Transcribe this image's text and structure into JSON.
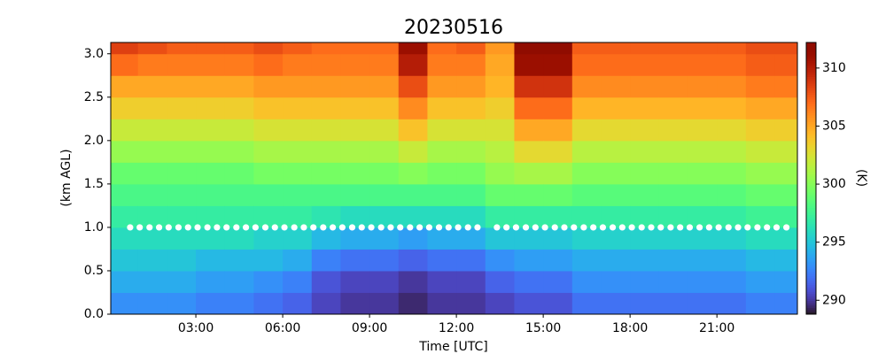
{
  "chart_data": {
    "type": "heatmap",
    "title": "20230516",
    "xlabel": "Time [UTC]",
    "ylabel": "(km AGL)",
    "colorbar_label": "(K)",
    "colormap": "turbo",
    "clim": [
      288.8,
      312.2
    ],
    "cticks": [
      290,
      295,
      300,
      305,
      310
    ],
    "xlim": [
      0.06,
      23.78
    ],
    "ylim": [
      0,
      3.13
    ],
    "xticks": [
      {
        "value": 3,
        "label": "03:00"
      },
      {
        "value": 6,
        "label": "06:00"
      },
      {
        "value": 9,
        "label": "09:00"
      },
      {
        "value": 12,
        "label": "12:00"
      },
      {
        "value": 15,
        "label": "15:00"
      },
      {
        "value": 18,
        "label": "18:00"
      },
      {
        "value": 21,
        "label": "21:00"
      }
    ],
    "yticks": [
      {
        "value": 0,
        "label": "0.0"
      },
      0.5,
      {
        "value": 1,
        "label": "1.0"
      },
      1.5,
      {
        "value": 2,
        "label": "2.0"
      },
      2.5,
      {
        "value": 3,
        "label": "3.0"
      }
    ],
    "x_edges": [
      0,
      1,
      2,
      3,
      4,
      5,
      6,
      7,
      8,
      9,
      10,
      11,
      12,
      13,
      14,
      15,
      16,
      17,
      18,
      19,
      20,
      21,
      22,
      23,
      24
    ],
    "y_edges": [
      0,
      0.25,
      0.5,
      0.75,
      1,
      1.25,
      1.5,
      1.75,
      2,
      2.25,
      2.5,
      2.75,
      3,
      3.25
    ],
    "values": [
      [
        293,
        294,
        295,
        296,
        297,
        298,
        299,
        300.5,
        302,
        303.5,
        305,
        307,
        308.5
      ],
      [
        293,
        294,
        295,
        296,
        297,
        298,
        299,
        300.5,
        302,
        303.5,
        305,
        306.5,
        308
      ],
      [
        293,
        294,
        295,
        296,
        297,
        298,
        299,
        300.5,
        302,
        303.5,
        305,
        306.5,
        307.5
      ],
      [
        292.5,
        293.5,
        294.5,
        296,
        297,
        298,
        299,
        300.5,
        302,
        303.5,
        305,
        306.5,
        307.5
      ],
      [
        292.5,
        293.5,
        294.5,
        296,
        297,
        298,
        299,
        300.5,
        302,
        303.5,
        305,
        306.5,
        307.5
      ],
      [
        292,
        293,
        294.5,
        295.5,
        297,
        298,
        299.5,
        301,
        302.5,
        304,
        305.5,
        307,
        308
      ],
      [
        291.5,
        292.5,
        294,
        295.5,
        297,
        298,
        299.5,
        301,
        302.5,
        304,
        305.5,
        306.5,
        307.5
      ],
      [
        290.5,
        291,
        292.5,
        294.5,
        296.5,
        298,
        299.5,
        301,
        302.5,
        304,
        305.5,
        306.5,
        307
      ],
      [
        290,
        290.5,
        292,
        294,
        296,
        298,
        299.5,
        301,
        302.5,
        304,
        305.5,
        306.5,
        307
      ],
      [
        290,
        290.5,
        292,
        294,
        296,
        298,
        299.5,
        301,
        302.5,
        304,
        305.5,
        306.5,
        307
      ],
      [
        289.5,
        290,
        291.5,
        293.5,
        296,
        298,
        300,
        302,
        304,
        306,
        308,
        310,
        311
      ],
      [
        290,
        290.5,
        292,
        294,
        296,
        298,
        299.5,
        301,
        302.5,
        304,
        305.5,
        306.5,
        307
      ],
      [
        290,
        290.5,
        292,
        294,
        296,
        298,
        299.5,
        301,
        302.5,
        304,
        305.5,
        306.5,
        307.5
      ],
      [
        290.5,
        291.5,
        293,
        295,
        297,
        299,
        300.5,
        301.5,
        302.5,
        303.5,
        304.5,
        305,
        305.5
      ],
      [
        291,
        292,
        293.5,
        295,
        297,
        299,
        301,
        303,
        305,
        307,
        309,
        311,
        312
      ],
      [
        291,
        292,
        293.5,
        295,
        297,
        299,
        301,
        303,
        305,
        307,
        309,
        311,
        312
      ],
      [
        292,
        293,
        294,
        295.5,
        297,
        298.5,
        300,
        301.5,
        303,
        304.5,
        306,
        307,
        307.5
      ],
      [
        292,
        293,
        294,
        295.5,
        297,
        298.5,
        300,
        301.5,
        303,
        304.5,
        306,
        307,
        307.5
      ],
      [
        292,
        293,
        294,
        295.5,
        297,
        298.5,
        300,
        301.5,
        303,
        304.5,
        306,
        307,
        307.5
      ],
      [
        292,
        293,
        294,
        295.5,
        297,
        298.5,
        300,
        301.5,
        303,
        304.5,
        306,
        307,
        307.5
      ],
      [
        292,
        293,
        294,
        295.5,
        297,
        298.5,
        300,
        301.5,
        303,
        304.5,
        306,
        307,
        307.5
      ],
      [
        292,
        293,
        294,
        295.5,
        297,
        298.5,
        300,
        301.5,
        303,
        304.5,
        306,
        307,
        307.5
      ],
      [
        292.5,
        293.5,
        294.5,
        296,
        297.5,
        299,
        300.5,
        302,
        303.5,
        305,
        306.5,
        307.5,
        308
      ],
      [
        292.5,
        293.5,
        294.5,
        296,
        297.5,
        299,
        300.5,
        302,
        303.5,
        305,
        306.5,
        307.5,
        308
      ]
    ],
    "points": {
      "color": "#ffffff",
      "x": [
        0.73,
        1.06,
        1.4,
        1.73,
        2.06,
        2.4,
        2.73,
        3.06,
        3.4,
        3.73,
        4.06,
        4.4,
        4.73,
        5.06,
        5.4,
        5.73,
        6.06,
        6.4,
        6.73,
        7.06,
        7.4,
        7.73,
        8.06,
        8.4,
        8.73,
        9.06,
        9.4,
        9.73,
        10.06,
        10.4,
        10.73,
        11.06,
        11.4,
        11.73,
        12.06,
        12.4,
        12.73,
        13.4,
        13.73,
        14.06,
        14.4,
        14.73,
        15.06,
        15.4,
        15.73,
        16.06,
        16.4,
        16.73,
        17.06,
        17.4,
        17.73,
        18.06,
        18.4,
        18.73,
        19.06,
        19.4,
        19.73,
        20.06,
        20.4,
        20.73,
        21.06,
        21.4,
        21.73,
        22.06,
        22.4,
        22.73,
        23.06,
        23.4
      ],
      "y": [
        1,
        1,
        1,
        1,
        1,
        1,
        1,
        1,
        1,
        1,
        1,
        1,
        1,
        1,
        1,
        1,
        1,
        1,
        1,
        1,
        1,
        1,
        1,
        1,
        1,
        1,
        1,
        1,
        1,
        1,
        1,
        1,
        1,
        1,
        1,
        1,
        1,
        1,
        1,
        1,
        1,
        1,
        1,
        1,
        1,
        1,
        1,
        1,
        1,
        1,
        1,
        1,
        1,
        1,
        1,
        1,
        1,
        1,
        1,
        1,
        1,
        1,
        1,
        1,
        1,
        1,
        1,
        1
      ]
    }
  }
}
